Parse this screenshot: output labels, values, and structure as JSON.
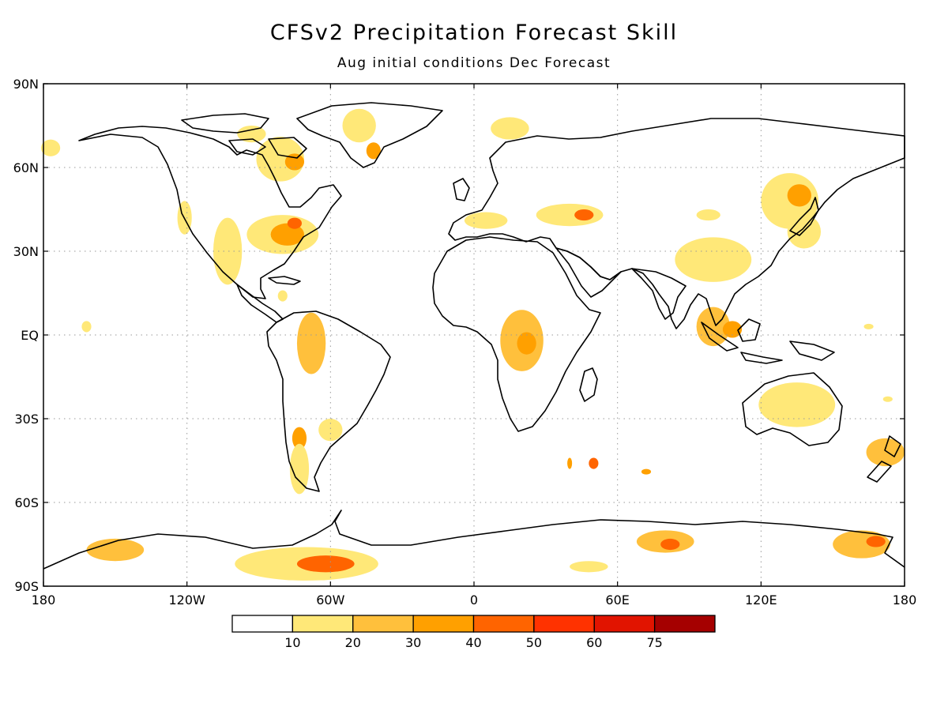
{
  "header": {
    "title": "CFSv2 Precipitation Forecast Skill",
    "subtitle": "Aug initial conditions  Dec Forecast"
  },
  "map": {
    "lon_range": [
      -180,
      180
    ],
    "lat_range": [
      -90,
      90
    ],
    "gridlines": "dotted",
    "lat_ticks": [
      {
        "lat": 90,
        "label": "90N"
      },
      {
        "lat": 60,
        "label": "60N"
      },
      {
        "lat": 30,
        "label": "30N"
      },
      {
        "lat": 0,
        "label": "EQ"
      },
      {
        "lat": -30,
        "label": "30S"
      },
      {
        "lat": -60,
        "label": "60S"
      },
      {
        "lat": -90,
        "label": "90S"
      }
    ],
    "lon_ticks": [
      {
        "lon": -180,
        "label": "180"
      },
      {
        "lon": -120,
        "label": "120W"
      },
      {
        "lon": -60,
        "label": "60W"
      },
      {
        "lon": 0,
        "label": "0"
      },
      {
        "lon": 60,
        "label": "60E"
      },
      {
        "lon": 120,
        "label": "120E"
      },
      {
        "lon": 180,
        "label": "180"
      }
    ],
    "colorbar": {
      "colors": [
        "#ffffff",
        "#ffe878",
        "#ffc03c",
        "#ffa000",
        "#ff6400",
        "#ff3200",
        "#e11400",
        "#a50000"
      ],
      "labels": [
        "10",
        "20",
        "30",
        "40",
        "50",
        "60",
        "75"
      ]
    },
    "skill_regions": [
      {
        "lon": -80,
        "lat": 36,
        "rx": 15,
        "ry": 7,
        "level": 1
      },
      {
        "lon": -78,
        "lat": 36,
        "rx": 7,
        "ry": 4,
        "level": 3
      },
      {
        "lon": -75,
        "lat": 40,
        "rx": 3,
        "ry": 2,
        "level": 4
      },
      {
        "lon": -103,
        "lat": 30,
        "rx": 6,
        "ry": 12,
        "level": 1
      },
      {
        "lon": -121,
        "lat": 42,
        "rx": 3,
        "ry": 6,
        "level": 1
      },
      {
        "lon": -81,
        "lat": 63,
        "rx": 10,
        "ry": 8,
        "level": 1
      },
      {
        "lon": -75,
        "lat": 62,
        "rx": 4,
        "ry": 3,
        "level": 3
      },
      {
        "lon": -48,
        "lat": 75,
        "rx": 7,
        "ry": 6,
        "level": 1
      },
      {
        "lon": -42,
        "lat": 66,
        "rx": 3,
        "ry": 3,
        "level": 3
      },
      {
        "lon": -93,
        "lat": 72,
        "rx": 6,
        "ry": 3,
        "level": 1
      },
      {
        "lon": -68,
        "lat": -3,
        "rx": 6,
        "ry": 11,
        "level": 2
      },
      {
        "lon": -73,
        "lat": -37,
        "rx": 3,
        "ry": 4,
        "level": 3
      },
      {
        "lon": -73,
        "lat": -48,
        "rx": 4,
        "ry": 9,
        "level": 1
      },
      {
        "lon": -60,
        "lat": -34,
        "rx": 5,
        "ry": 4,
        "level": 1
      },
      {
        "lon": 20,
        "lat": -2,
        "rx": 9,
        "ry": 11,
        "level": 2
      },
      {
        "lon": 22,
        "lat": -3,
        "rx": 4,
        "ry": 4,
        "level": 3
      },
      {
        "lon": 40,
        "lat": 43,
        "rx": 14,
        "ry": 4,
        "level": 1
      },
      {
        "lon": 46,
        "lat": 43,
        "rx": 4,
        "ry": 2,
        "level": 4
      },
      {
        "lon": 5,
        "lat": 41,
        "rx": 9,
        "ry": 3,
        "level": 1
      },
      {
        "lon": 100,
        "lat": 27,
        "rx": 16,
        "ry": 8,
        "level": 1
      },
      {
        "lon": 100,
        "lat": 3,
        "rx": 7,
        "ry": 7,
        "level": 2
      },
      {
        "lon": 108,
        "lat": 2,
        "rx": 4,
        "ry": 3,
        "level": 3
      },
      {
        "lon": 132,
        "lat": 48,
        "rx": 12,
        "ry": 10,
        "level": 1
      },
      {
        "lon": 136,
        "lat": 50,
        "rx": 5,
        "ry": 4,
        "level": 3
      },
      {
        "lon": 138,
        "lat": 37,
        "rx": 7,
        "ry": 6,
        "level": 1
      },
      {
        "lon": 135,
        "lat": -25,
        "rx": 16,
        "ry": 8,
        "level": 1
      },
      {
        "lon": 172,
        "lat": -42,
        "rx": 8,
        "ry": 5,
        "level": 2
      },
      {
        "lon": 40,
        "lat": -46,
        "rx": 1,
        "ry": 2,
        "level": 3
      },
      {
        "lon": 50,
        "lat": -46,
        "rx": 2,
        "ry": 2,
        "level": 4
      },
      {
        "lon": 72,
        "lat": -49,
        "rx": 2,
        "ry": 1,
        "level": 3
      },
      {
        "lon": -70,
        "lat": -82,
        "rx": 30,
        "ry": 6,
        "level": 1
      },
      {
        "lon": -62,
        "lat": -82,
        "rx": 12,
        "ry": 3,
        "level": 4
      },
      {
        "lon": -150,
        "lat": -77,
        "rx": 12,
        "ry": 4,
        "level": 2
      },
      {
        "lon": 80,
        "lat": -74,
        "rx": 12,
        "ry": 4,
        "level": 2
      },
      {
        "lon": 82,
        "lat": -75,
        "rx": 4,
        "ry": 2,
        "level": 4
      },
      {
        "lon": 162,
        "lat": -75,
        "rx": 12,
        "ry": 5,
        "level": 2
      },
      {
        "lon": 168,
        "lat": -74,
        "rx": 4,
        "ry": 2,
        "level": 4
      },
      {
        "lon": 48,
        "lat": -83,
        "rx": 8,
        "ry": 2,
        "level": 1
      },
      {
        "lon": -162,
        "lat": 3,
        "rx": 2,
        "ry": 2,
        "level": 1
      },
      {
        "lon": -177,
        "lat": 67,
        "rx": 4,
        "ry": 3,
        "level": 1
      },
      {
        "lon": 98,
        "lat": 43,
        "rx": 5,
        "ry": 2,
        "level": 1
      },
      {
        "lon": 165,
        "lat": 3,
        "rx": 2,
        "ry": 1,
        "level": 1
      },
      {
        "lon": 173,
        "lat": -23,
        "rx": 2,
        "ry": 1,
        "level": 1
      },
      {
        "lon": -80,
        "lat": 14,
        "rx": 2,
        "ry": 2,
        "level": 1
      },
      {
        "lon": 15,
        "lat": 74,
        "rx": 8,
        "ry": 4,
        "level": 1
      }
    ]
  }
}
